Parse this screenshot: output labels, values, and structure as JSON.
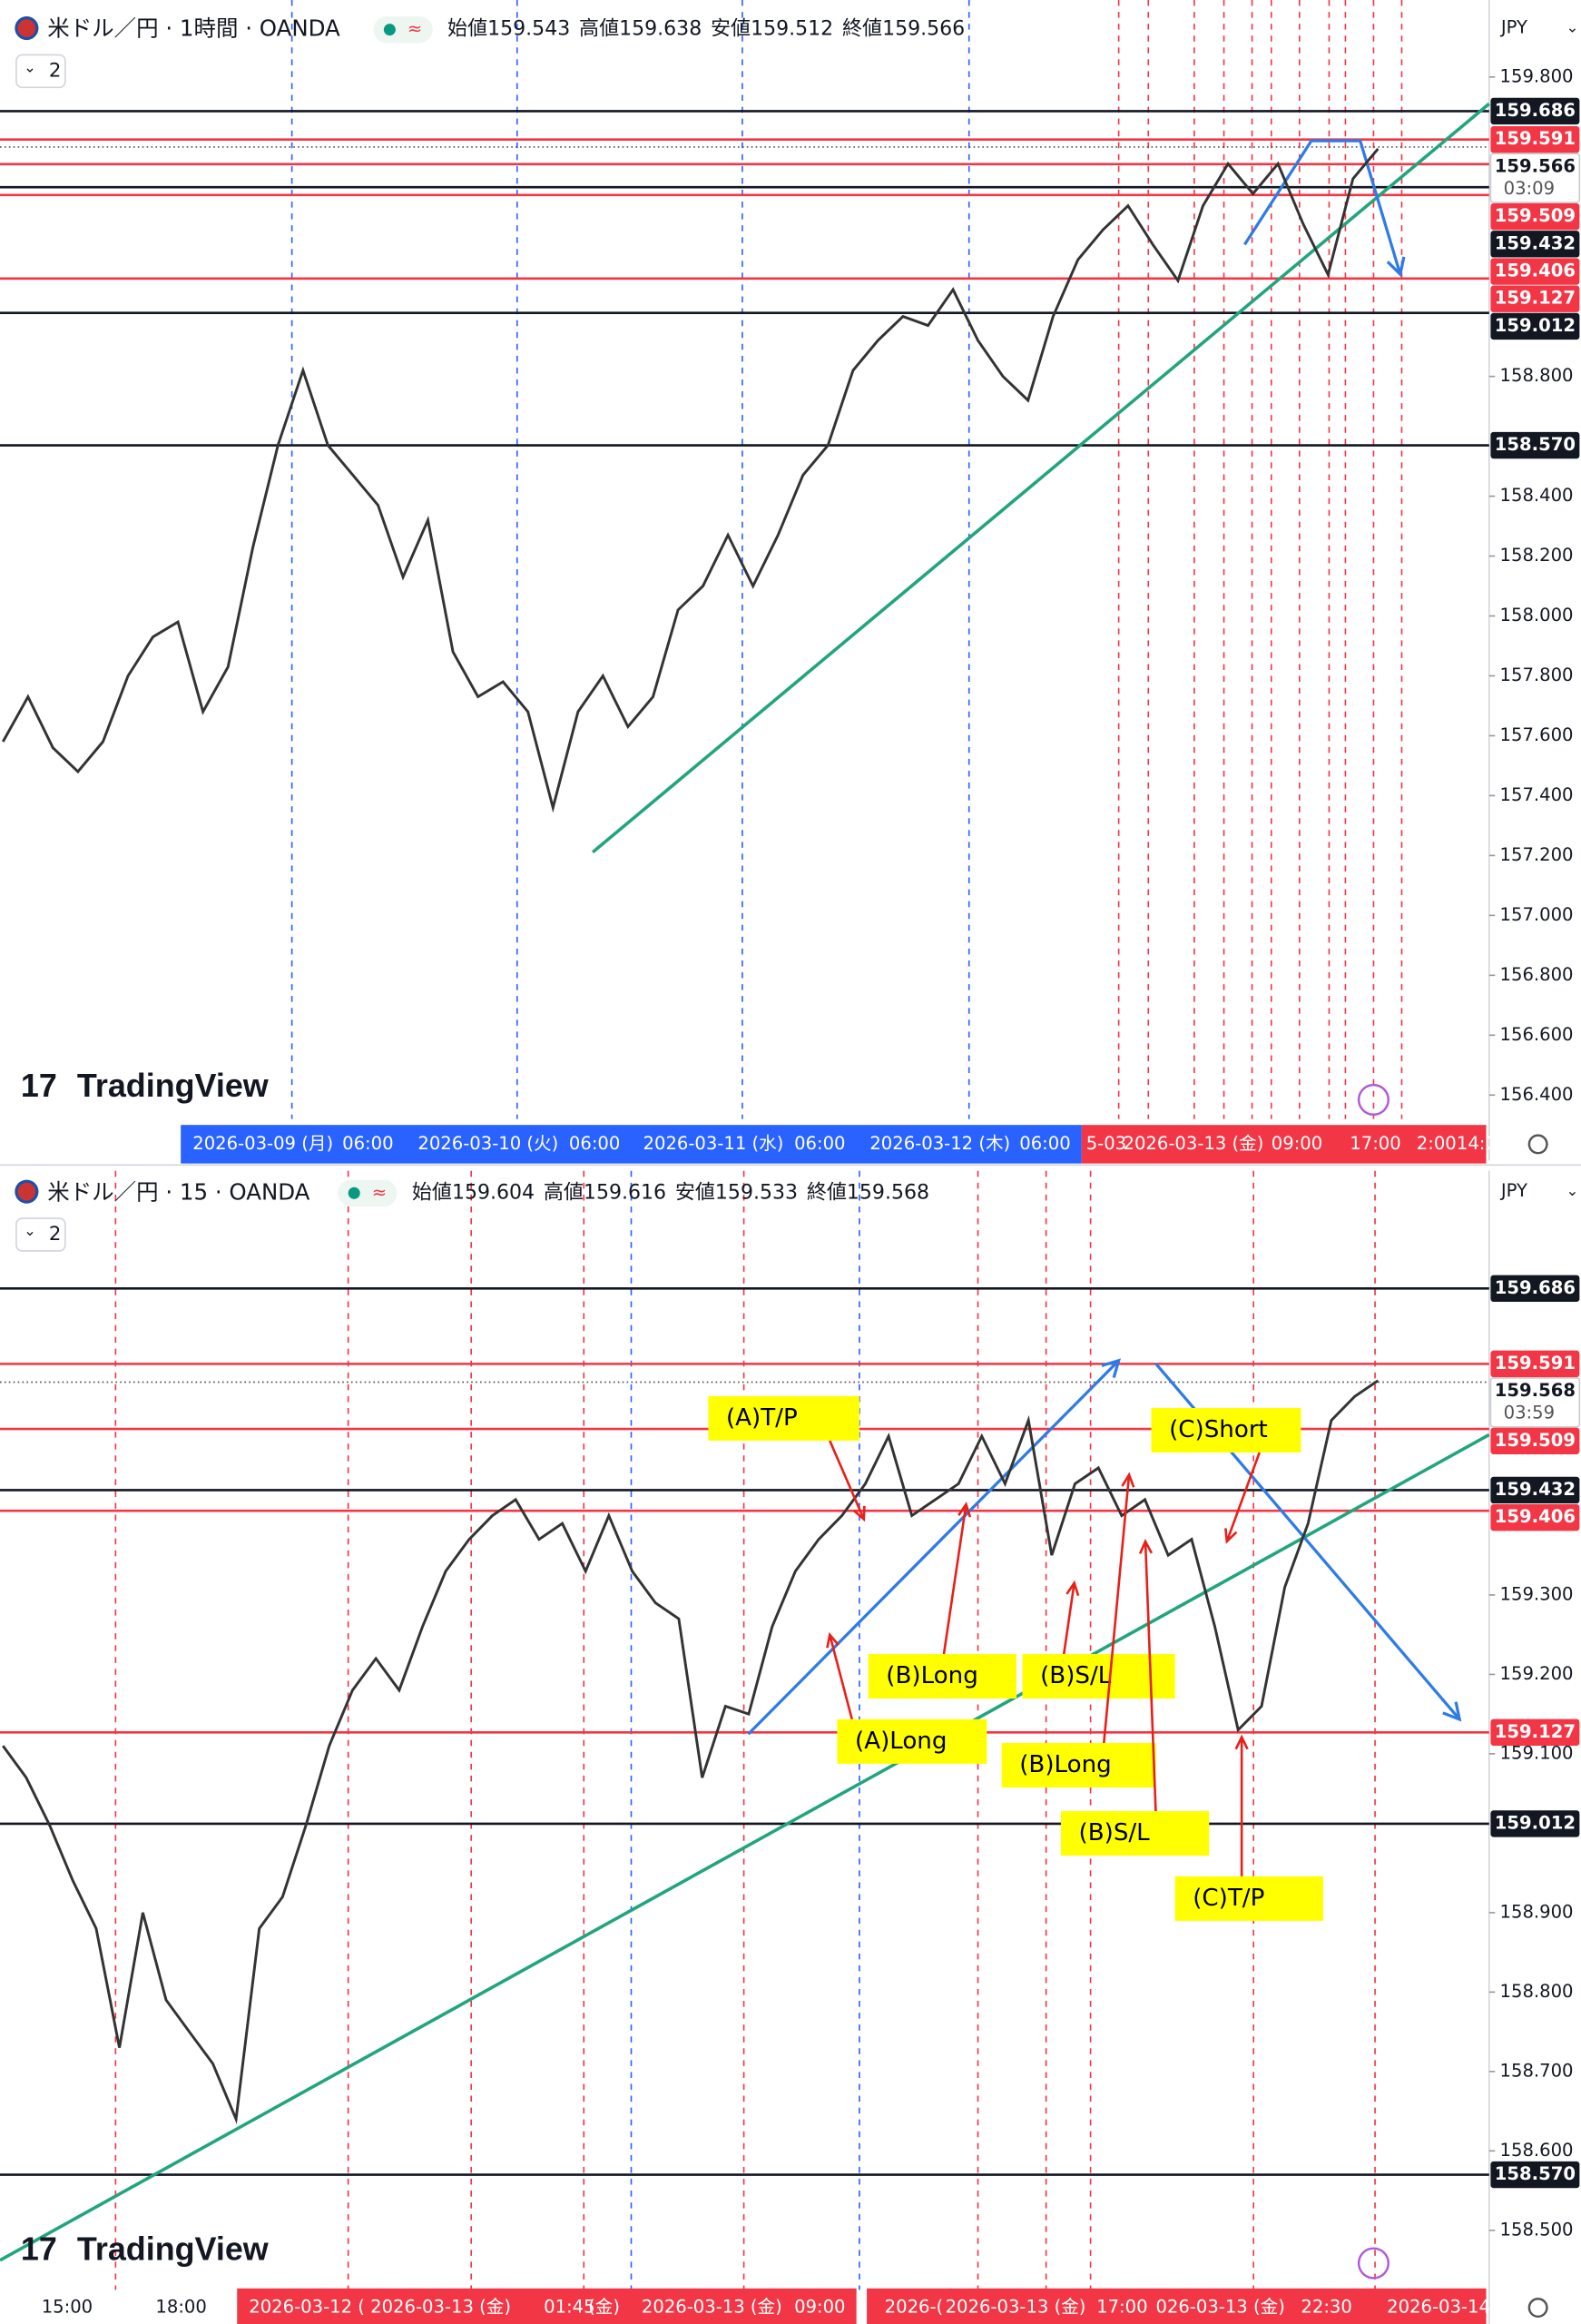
{
  "chart_data": [
    {
      "type": "line",
      "title": "米ドル／円 · 1時間 · OANDA",
      "ohlc": [
        {
          "label": "始値",
          "value": "159.543"
        },
        {
          "label": "高値",
          "value": "159.638"
        },
        {
          "label": "安値",
          "value": "159.512"
        },
        {
          "label": "終値",
          "value": "159.566"
        }
      ],
      "indicator_count": "2",
      "currency": "JPY",
      "brand": "TradingView",
      "color": "#333333",
      "ylim": [
        156.32,
        160.057
      ],
      "yticks": [
        {
          "value": 156.4,
          "label": "156.400"
        },
        {
          "value": 156.6,
          "label": "156.600"
        },
        {
          "value": 156.8,
          "label": "156.800"
        },
        {
          "value": 157.0,
          "label": "157.000"
        },
        {
          "value": 157.2,
          "label": "157.200"
        },
        {
          "value": 157.4,
          "label": "157.400"
        },
        {
          "value": 157.6,
          "label": "157.600"
        },
        {
          "value": 157.8,
          "label": "157.800"
        },
        {
          "value": 158.0,
          "label": "158.000"
        },
        {
          "value": 158.2,
          "label": "158.200"
        },
        {
          "value": 158.4,
          "label": "158.400"
        },
        {
          "value": 158.8,
          "label": "158.800"
        },
        {
          "value": 159.8,
          "label": "159.800"
        }
      ],
      "values": [
        157.58,
        157.73,
        157.56,
        157.48,
        157.58,
        157.8,
        157.93,
        157.98,
        157.68,
        157.83,
        158.23,
        158.57,
        158.82,
        158.57,
        158.47,
        158.37,
        158.13,
        158.32,
        157.88,
        157.73,
        157.78,
        157.68,
        157.36,
        157.68,
        157.8,
        157.63,
        157.73,
        158.02,
        158.1,
        158.27,
        158.1,
        158.27,
        158.47,
        158.57,
        158.82,
        158.92,
        159.0,
        158.97,
        159.09,
        158.92,
        158.8,
        158.72,
        159.0,
        159.19,
        159.29,
        159.37,
        159.24,
        159.12,
        159.37,
        159.51,
        159.41,
        159.51,
        159.31,
        159.14,
        159.46,
        159.56
      ],
      "price_lines": [
        {
          "value": 159.686,
          "label": "159.686",
          "color": "#131722"
        },
        {
          "value": 159.591,
          "label": "159.591",
          "color": "#f23645"
        },
        {
          "value": 159.509,
          "label": "159.509",
          "color": "#f23645"
        },
        {
          "value": 159.432,
          "label": "159.432",
          "color": "#131722"
        },
        {
          "value": 159.406,
          "label": "159.406",
          "color": "#f23645"
        },
        {
          "value": 159.127,
          "label": "159.127",
          "color": "#f23645"
        },
        {
          "value": 159.012,
          "label": "159.012",
          "color": "#131722"
        },
        {
          "value": 158.57,
          "label": "158.570",
          "color": "#131722"
        }
      ],
      "last_price": {
        "value": 159.566,
        "label": "159.566",
        "countdown": "03:09"
      },
      "x_labels": [
        "2026-03-09 (月)",
        "06:00",
        "2026-03-10 (火)",
        "06:00",
        "2026-03-11 (水)",
        "06:00",
        "2026-03-12 (木)",
        "06:00",
        "5-03",
        "2026-03-13 (金)",
        "09:00",
        "17:00",
        "2:00",
        "14:0"
      ]
    },
    {
      "type": "line",
      "title": "米ドル／円 · 15 · OANDA",
      "ohlc": [
        {
          "label": "始値",
          "value": "159.604"
        },
        {
          "label": "高値",
          "value": "159.616"
        },
        {
          "label": "安値",
          "value": "159.533"
        },
        {
          "label": "終値",
          "value": "159.568"
        }
      ],
      "indicator_count": "2",
      "currency": "JPY",
      "brand": "TradingView",
      "color": "#333333",
      "ylim": [
        158.425,
        159.834
      ],
      "yticks": [
        {
          "value": 158.5,
          "label": "158.500"
        },
        {
          "value": 158.6,
          "label": "158.600"
        },
        {
          "value": 158.7,
          "label": "158.700"
        },
        {
          "value": 158.8,
          "label": "158.800"
        },
        {
          "value": 158.9,
          "label": "158.900"
        },
        {
          "value": 159.1,
          "label": "159.100"
        },
        {
          "value": 159.2,
          "label": "159.200"
        },
        {
          "value": 159.3,
          "label": "159.300"
        }
      ],
      "values": [
        159.11,
        159.07,
        159.01,
        158.94,
        158.88,
        158.73,
        158.9,
        158.79,
        158.75,
        158.71,
        158.64,
        158.88,
        158.92,
        159.01,
        159.11,
        159.18,
        159.22,
        159.18,
        159.26,
        159.33,
        159.37,
        159.4,
        159.42,
        159.37,
        159.39,
        159.33,
        159.4,
        159.33,
        159.29,
        159.27,
        159.07,
        159.16,
        159.15,
        159.26,
        159.33,
        159.37,
        159.4,
        159.44,
        159.5,
        159.4,
        159.42,
        159.44,
        159.5,
        159.44,
        159.52,
        159.35,
        159.44,
        159.46,
        159.4,
        159.42,
        159.35,
        159.37,
        159.26,
        159.13,
        159.16,
        159.31,
        159.39,
        159.52,
        159.55,
        159.57
      ],
      "price_lines": [
        {
          "value": 159.686,
          "label": "159.686",
          "color": "#131722"
        },
        {
          "value": 159.591,
          "label": "159.591",
          "color": "#f23645"
        },
        {
          "value": 159.509,
          "label": "159.509",
          "color": "#f23645"
        },
        {
          "value": 159.432,
          "label": "159.432",
          "color": "#131722"
        },
        {
          "value": 159.406,
          "label": "159.406",
          "color": "#f23645"
        },
        {
          "value": 159.127,
          "label": "159.127",
          "color": "#f23645"
        },
        {
          "value": 159.012,
          "label": "159.012",
          "color": "#131722"
        },
        {
          "value": 158.57,
          "label": "158.570",
          "color": "#131722"
        }
      ],
      "last_price": {
        "value": 159.568,
        "label": "159.568",
        "countdown": "03:59"
      },
      "x_labels": [
        "15:00",
        "18:00",
        "2026-03-12 (",
        "2026-03-13 (金)",
        "01:45",
        "(金)",
        "2026-03-13 (金)",
        "09:00",
        "2026-(",
        "2026-03-13 (金)",
        "17:00",
        "026-03-13 (金)",
        "22:30",
        "2026-03-14"
      ],
      "annotations": [
        "(A)T/P",
        "(A)Long",
        "(B)Long",
        "(B)S/L",
        "(B)Long",
        "(B)S/L",
        "(C)Short",
        "(C)T/P"
      ]
    }
  ]
}
